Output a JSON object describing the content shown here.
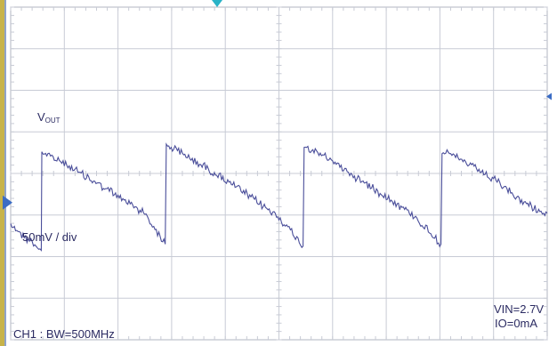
{
  "chart_data": {
    "type": "line",
    "title": "",
    "xlabel": "",
    "ylabel": "",
    "grid": true,
    "grid_divisions": {
      "x": 10,
      "y": 8
    },
    "xlim": [
      0,
      10
    ],
    "ylim": [
      -3.3,
      4.7
    ],
    "units": {
      "y": "div",
      "y_scale": "50mV / div"
    },
    "series": [
      {
        "name": "VOUT",
        "points": [
          [
            0.0,
            -0.5
          ],
          [
            0.23,
            -0.8
          ],
          [
            0.45,
            -1.0
          ],
          [
            0.57,
            -1.15
          ],
          [
            0.58,
            1.2
          ],
          [
            1.0,
            0.95
          ],
          [
            1.5,
            0.55
          ],
          [
            2.0,
            0.15
          ],
          [
            2.5,
            -0.25
          ],
          [
            2.88,
            -1.0
          ],
          [
            2.9,
            1.4
          ],
          [
            3.5,
            0.95
          ],
          [
            4.0,
            0.55
          ],
          [
            4.5,
            0.1
          ],
          [
            5.0,
            -0.35
          ],
          [
            5.45,
            -1.05
          ],
          [
            5.47,
            1.35
          ],
          [
            6.0,
            1.0
          ],
          [
            6.5,
            0.55
          ],
          [
            7.0,
            0.15
          ],
          [
            7.5,
            -0.3
          ],
          [
            8.02,
            -1.0
          ],
          [
            8.04,
            1.25
          ],
          [
            8.5,
            0.95
          ],
          [
            9.0,
            0.55
          ],
          [
            9.5,
            0.05
          ],
          [
            10.0,
            -0.3
          ],
          [
            10.38,
            -1.1
          ],
          [
            10.4,
            1.1
          ]
        ]
      }
    ]
  },
  "labels": {
    "vout_main": "V",
    "vout_sub": "OUT",
    "scale": "50mV / div",
    "channel": "CH1 : BW=500MHz",
    "vin": "VIN=2.7V",
    "io": "IO=0mA"
  },
  "colors": {
    "trace": "#4a4e9a",
    "grid": "#c8cbd5",
    "frame": "#b0b4c2",
    "left_bar": "#c7b34a",
    "marker_ground": "#3b6cc4",
    "marker_trigger": "#29b3c7",
    "marker_right": "#3b6cc4"
  }
}
